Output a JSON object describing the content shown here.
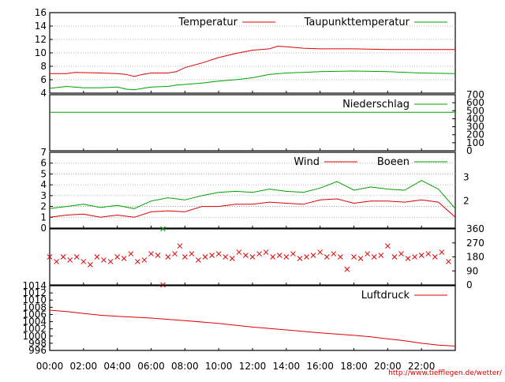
{
  "credit": "http://www.tiefflegen.de/wetter/",
  "chart_data": [
    {
      "type": "line",
      "x_ticks": [
        "00:00",
        "02:00",
        "04:00",
        "06:00",
        "08:00",
        "10:00",
        "12:00",
        "14:00",
        "16:00",
        "18:00",
        "20:00",
        "22:00"
      ],
      "ylim": [
        4,
        16
      ],
      "y_ticks": [
        "4",
        "6",
        "8",
        "10",
        "12",
        "14",
        "16"
      ],
      "grid": "horizontal dotted",
      "legend_position": "top",
      "series": [
        {
          "name": "Temperatur",
          "color": "#e00000",
          "x_hours": [
            0,
            1,
            1.5,
            3,
            4,
            4.5,
            5,
            5.5,
            6,
            7,
            7.5,
            8,
            9,
            10,
            11,
            12,
            13,
            13.5,
            14,
            15,
            16,
            18,
            20,
            22,
            24
          ],
          "values": [
            6.9,
            6.9,
            7.1,
            7.0,
            6.9,
            6.8,
            6.5,
            6.8,
            7.0,
            7.0,
            7.2,
            7.8,
            8.5,
            9.3,
            9.9,
            10.4,
            10.6,
            11.0,
            10.9,
            10.7,
            10.6,
            10.6,
            10.5,
            10.5,
            10.5
          ]
        },
        {
          "name": "Taupunkttemperatur",
          "color": "#00a000",
          "x_hours": [
            0,
            1,
            2,
            3,
            4,
            4.5,
            5,
            6,
            7,
            7.5,
            8,
            9,
            10,
            11,
            12,
            13,
            14,
            15,
            16,
            18,
            20,
            22,
            24
          ],
          "values": [
            4.7,
            5.0,
            4.8,
            4.8,
            4.9,
            4.6,
            4.5,
            4.9,
            5.0,
            5.2,
            5.3,
            5.5,
            5.8,
            6.0,
            6.3,
            6.8,
            7.0,
            7.1,
            7.2,
            7.3,
            7.2,
            7.0,
            6.9
          ]
        }
      ]
    },
    {
      "type": "line",
      "x_ticks": [
        "00:00",
        "02:00",
        "04:00",
        "06:00",
        "08:00",
        "10:00",
        "12:00",
        "14:00",
        "16:00",
        "18:00",
        "20:00",
        "22:00"
      ],
      "ylim": [
        0,
        700
      ],
      "y_ticks": [
        "0",
        "100",
        "200",
        "300",
        "400",
        "500",
        "600",
        "700"
      ],
      "y_axis_side": "right",
      "legend_position": "top-right",
      "series": [
        {
          "name": "Niederschlag",
          "color": "#00a000",
          "x_hours": [
            0,
            24
          ],
          "values": [
            480,
            480
          ]
        }
      ]
    },
    {
      "type": "line",
      "x_ticks": [
        "00:00",
        "02:00",
        "04:00",
        "06:00",
        "08:00",
        "10:00",
        "12:00",
        "14:00",
        "16:00",
        "18:00",
        "20:00",
        "22:00"
      ],
      "ylim": [
        0,
        7
      ],
      "y_ticks": [
        "0",
        "1",
        "2",
        "3",
        "4",
        "5",
        "6",
        "7"
      ],
      "right_ticks": [
        "2",
        "3"
      ],
      "grid": "horizontal dotted",
      "legend_position": "top-right",
      "series": [
        {
          "name": "Wind",
          "color": "#e00000",
          "x_hours": [
            0,
            1,
            2,
            3,
            4,
            5,
            6,
            7,
            8,
            9,
            10,
            11,
            12,
            13,
            14,
            15,
            16,
            17,
            18,
            19,
            20,
            21,
            22,
            23,
            24
          ],
          "values": [
            1.0,
            1.2,
            1.3,
            1.0,
            1.2,
            1.0,
            1.5,
            1.6,
            1.5,
            2.0,
            2.0,
            2.2,
            2.2,
            2.4,
            2.3,
            2.2,
            2.6,
            2.7,
            2.3,
            2.5,
            2.5,
            2.4,
            2.6,
            2.4,
            1.0
          ]
        },
        {
          "name": "Boeen",
          "color": "#00a000",
          "x_hours": [
            0,
            1,
            2,
            3,
            4,
            5,
            6,
            7,
            8,
            9,
            10,
            11,
            12,
            13,
            14,
            15,
            16,
            17,
            18,
            19,
            20,
            21,
            22,
            23,
            24
          ],
          "values": [
            1.8,
            2.0,
            2.2,
            1.9,
            2.1,
            1.8,
            2.5,
            2.8,
            2.6,
            3.0,
            3.3,
            3.4,
            3.3,
            3.6,
            3.4,
            3.3,
            3.7,
            4.3,
            3.5,
            3.8,
            3.6,
            3.5,
            4.4,
            3.6,
            1.8
          ]
        }
      ]
    },
    {
      "type": "scatter",
      "x_ticks": [
        "00:00",
        "02:00",
        "04:00",
        "06:00",
        "08:00",
        "10:00",
        "12:00",
        "14:00",
        "16:00",
        "18:00",
        "20:00",
        "22:00"
      ],
      "ylim": [
        0,
        360
      ],
      "y_ticks": [
        "0",
        "90",
        "180",
        "270",
        "360"
      ],
      "y_axis_side": "right",
      "marker": "x",
      "series": [
        {
          "name": "",
          "color": "#e00000",
          "x_hours": [
            0,
            0.4,
            0.8,
            1.2,
            1.6,
            2,
            2.4,
            2.8,
            3.2,
            3.6,
            4,
            4.4,
            4.8,
            5.2,
            5.6,
            6,
            6.4,
            6.7,
            7,
            7.4,
            7.7,
            8,
            8.4,
            8.8,
            9.2,
            9.6,
            10,
            10.4,
            10.8,
            11.2,
            11.6,
            12,
            12.4,
            12.8,
            13.2,
            13.6,
            14,
            14.4,
            14.8,
            15.2,
            15.6,
            16,
            16.4,
            16.8,
            17.2,
            17.6,
            18,
            18.4,
            18.8,
            19.2,
            19.6,
            20,
            20.4,
            20.8,
            21.2,
            21.6,
            22,
            22.4,
            22.8,
            23.2,
            23.6
          ],
          "values": [
            180,
            150,
            180,
            160,
            180,
            150,
            130,
            180,
            160,
            150,
            180,
            170,
            200,
            150,
            160,
            200,
            190,
            0,
            180,
            200,
            250,
            180,
            200,
            160,
            180,
            190,
            200,
            180,
            170,
            210,
            190,
            180,
            200,
            210,
            180,
            190,
            180,
            200,
            170,
            180,
            190,
            210,
            180,
            200,
            180,
            100,
            180,
            170,
            200,
            180,
            190,
            250,
            180,
            200,
            170,
            180,
            190,
            200,
            180,
            210,
            150
          ]
        },
        {
          "name": "",
          "color": "#00a000",
          "x_hours": [
            6.7
          ],
          "values": [
            360
          ]
        }
      ]
    },
    {
      "type": "line",
      "x_ticks": [
        "00:00",
        "02:00",
        "04:00",
        "06:00",
        "08:00",
        "10:00",
        "12:00",
        "14:00",
        "16:00",
        "18:00",
        "20:00",
        "22:00"
      ],
      "ylim": [
        996,
        1014
      ],
      "y_ticks": [
        "996",
        "998",
        "1000",
        "1002",
        "1004",
        "1006",
        "1008",
        "1010",
        "1012",
        "1014"
      ],
      "legend_position": "top-right",
      "series": [
        {
          "name": "Luftdruck",
          "color": "#e00000",
          "x_hours": [
            0,
            1,
            2,
            3,
            4,
            6,
            8,
            10,
            11,
            12,
            14,
            16,
            18,
            19,
            20,
            21,
            22,
            23,
            24
          ],
          "values": [
            1007.2,
            1006.8,
            1006.3,
            1005.8,
            1005.5,
            1005.0,
            1004.3,
            1003.5,
            1003.0,
            1002.5,
            1001.7,
            1000.9,
            1000.2,
            999.8,
            999.2,
            998.7,
            998.0,
            997.5,
            997.2
          ]
        }
      ]
    }
  ]
}
